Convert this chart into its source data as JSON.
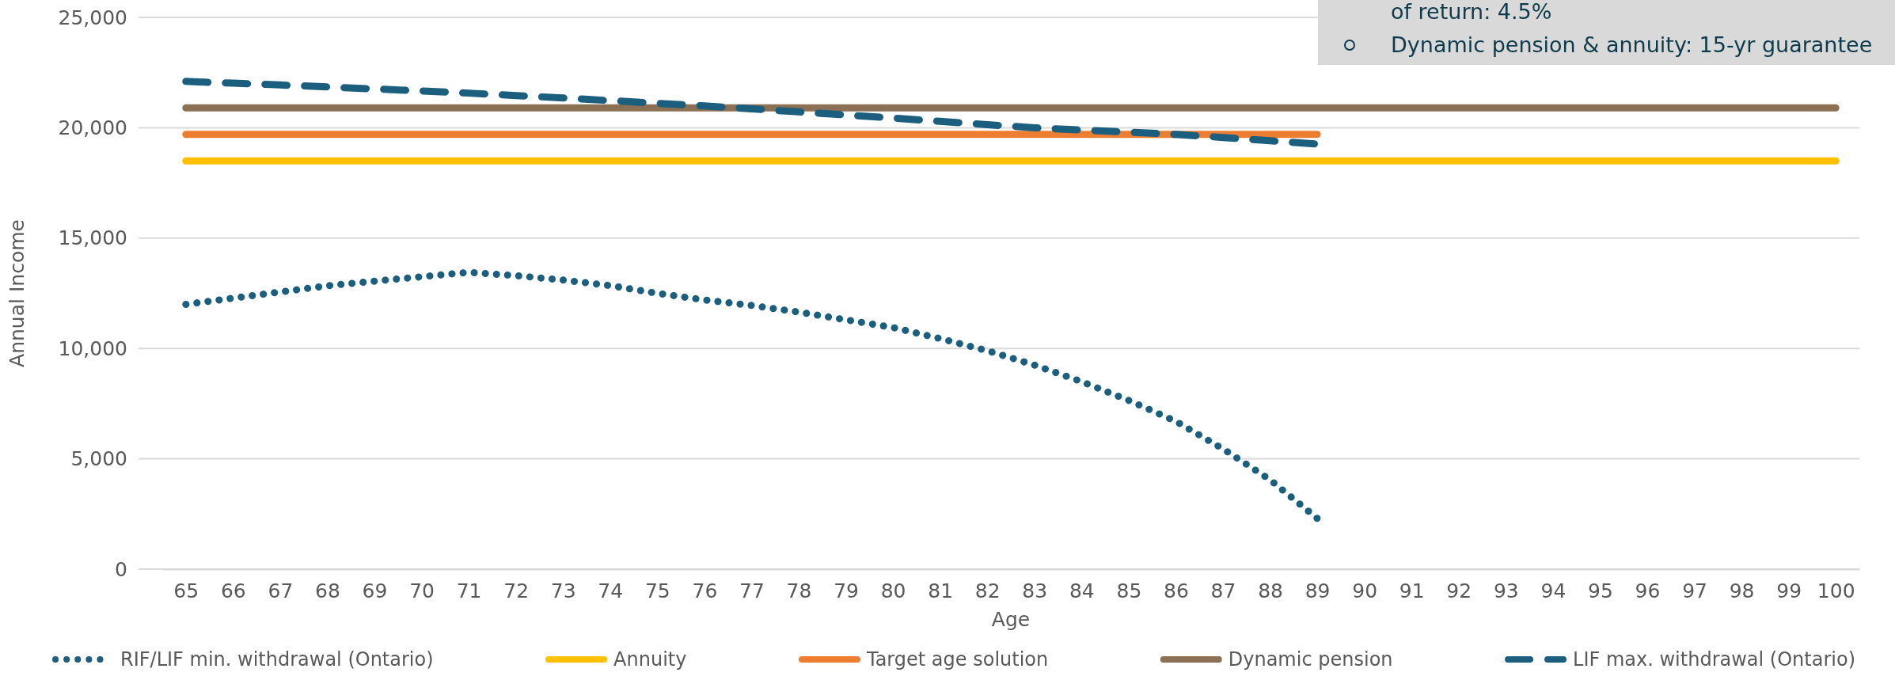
{
  "chart_data": {
    "type": "line",
    "xlabel": "Age",
    "ylabel": "Annual Income",
    "categories": [
      "65",
      "66",
      "67",
      "68",
      "69",
      "70",
      "71",
      "72",
      "73",
      "74",
      "75",
      "76",
      "77",
      "78",
      "79",
      "80",
      "81",
      "82",
      "83",
      "84",
      "85",
      "86",
      "87",
      "88",
      "89",
      "90",
      "91",
      "92",
      "93",
      "94",
      "95",
      "96",
      "97",
      "98",
      "99",
      "100"
    ],
    "ylim": [
      0,
      25000
    ],
    "yticks": [
      {
        "value": 0,
        "label": "0"
      },
      {
        "value": 5000,
        "label": "5,000"
      },
      {
        "value": 10000,
        "label": "10,000"
      },
      {
        "value": 15000,
        "label": "15,000"
      },
      {
        "value": 20000,
        "label": "20,000"
      },
      {
        "value": 25000,
        "label": "25,000"
      }
    ],
    "grid": "y",
    "legend": "bottom",
    "marker": "none",
    "series": [
      {
        "name": "RIF/LIF min. withdrawal (Ontario)",
        "color": "#1b5e7e",
        "line_style": "dotted",
        "values": [
          12000,
          12280,
          12560,
          12840,
          13050,
          13250,
          13450,
          13300,
          13100,
          12850,
          12500,
          12200,
          11950,
          11650,
          11300,
          10950,
          10450,
          9900,
          9250,
          8500,
          7650,
          6700,
          5450,
          4050,
          2300,
          null,
          null,
          null,
          null,
          null,
          null,
          null,
          null,
          null,
          null,
          null
        ]
      },
      {
        "name": "Annuity",
        "color": "#ffc000",
        "line_style": "solid",
        "values": [
          18500,
          18500,
          18500,
          18500,
          18500,
          18500,
          18500,
          18500,
          18500,
          18500,
          18500,
          18500,
          18500,
          18500,
          18500,
          18500,
          18500,
          18500,
          18500,
          18500,
          18500,
          18500,
          18500,
          18500,
          18500,
          18500,
          18500,
          18500,
          18500,
          18500,
          18500,
          18500,
          18500,
          18500,
          18500,
          18500
        ]
      },
      {
        "name": "Target age solution",
        "color": "#ed7d31",
        "line_style": "solid",
        "values": [
          19700,
          19700,
          19700,
          19700,
          19700,
          19700,
          19700,
          19700,
          19700,
          19700,
          19700,
          19700,
          19700,
          19700,
          19700,
          19700,
          19700,
          19700,
          19700,
          19700,
          19700,
          19700,
          19700,
          19700,
          19700,
          null,
          null,
          null,
          null,
          null,
          null,
          null,
          null,
          null,
          null,
          null
        ]
      },
      {
        "name": "Dynamic pension",
        "color": "#8c7054",
        "line_style": "solid",
        "values": [
          20900,
          20900,
          20900,
          20900,
          20900,
          20900,
          20900,
          20900,
          20900,
          20900,
          20900,
          20900,
          20900,
          20900,
          20900,
          20900,
          20900,
          20900,
          20900,
          20900,
          20900,
          20900,
          20900,
          20900,
          20900,
          20900,
          20900,
          20900,
          20900,
          20900,
          20900,
          20900,
          20900,
          20900,
          20900,
          20900
        ]
      },
      {
        "name": "LIF max. withdrawal (Ontario)",
        "color": "#1b5e7e",
        "line_style": "dashed",
        "values": [
          22100,
          22020,
          21940,
          21850,
          21760,
          21670,
          21570,
          21460,
          21350,
          21230,
          21110,
          20990,
          20860,
          20720,
          20580,
          20440,
          20290,
          20140,
          20000,
          19900,
          19800,
          19700,
          19560,
          19410,
          19260,
          null,
          null,
          null,
          null,
          null,
          null,
          null,
          null,
          null,
          null,
          null
        ]
      }
    ],
    "annotations": [
      "of return: 4.5%",
      "Dynamic pension & annuity: 15-yr guarantee"
    ]
  }
}
